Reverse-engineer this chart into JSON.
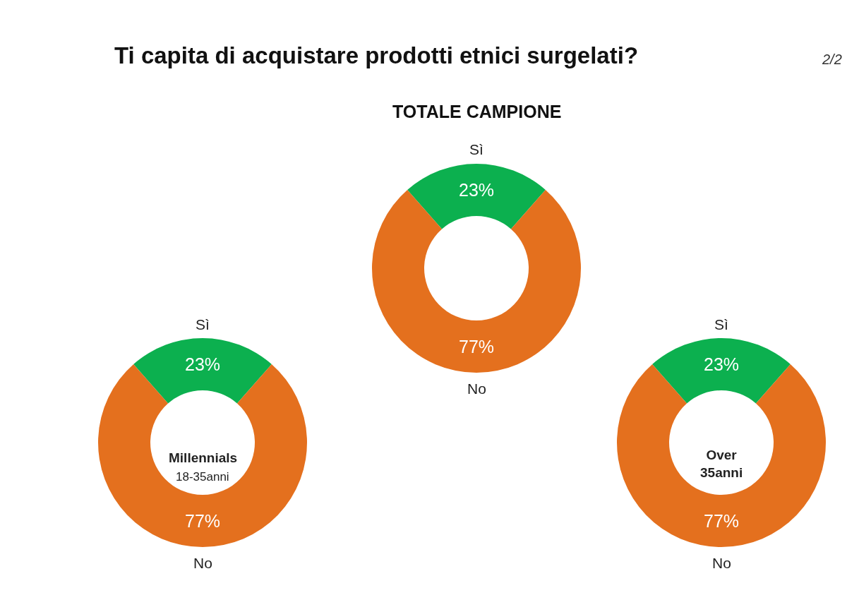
{
  "chart_data": [
    {
      "type": "donut",
      "title": "Ti capita di acquistare prodotti etnici surgelati?",
      "subtitle": "TOTALE CAMPIONE",
      "annotations": [
        "2/2"
      ],
      "categories": [
        "Sì",
        "No"
      ],
      "values": [
        23,
        77
      ],
      "colors": [
        "#0cb04f",
        "#e4701e"
      ],
      "value_labels": [
        "23%",
        "77%"
      ]
    },
    {
      "type": "donut",
      "annotations": [
        "Millennials",
        "18-35anni"
      ],
      "categories": [
        "Sì",
        "No"
      ],
      "values": [
        23,
        77
      ],
      "colors": [
        "#0cb04f",
        "#e4701e"
      ],
      "value_labels": [
        "23%",
        "77%"
      ]
    },
    {
      "type": "donut",
      "annotations": [
        "Over 35anni"
      ],
      "categories": [
        "Sì",
        "No"
      ],
      "values": [
        23,
        77
      ],
      "colors": [
        "#0cb04f",
        "#e4701e"
      ],
      "value_labels": [
        "23%",
        "77%"
      ]
    }
  ]
}
